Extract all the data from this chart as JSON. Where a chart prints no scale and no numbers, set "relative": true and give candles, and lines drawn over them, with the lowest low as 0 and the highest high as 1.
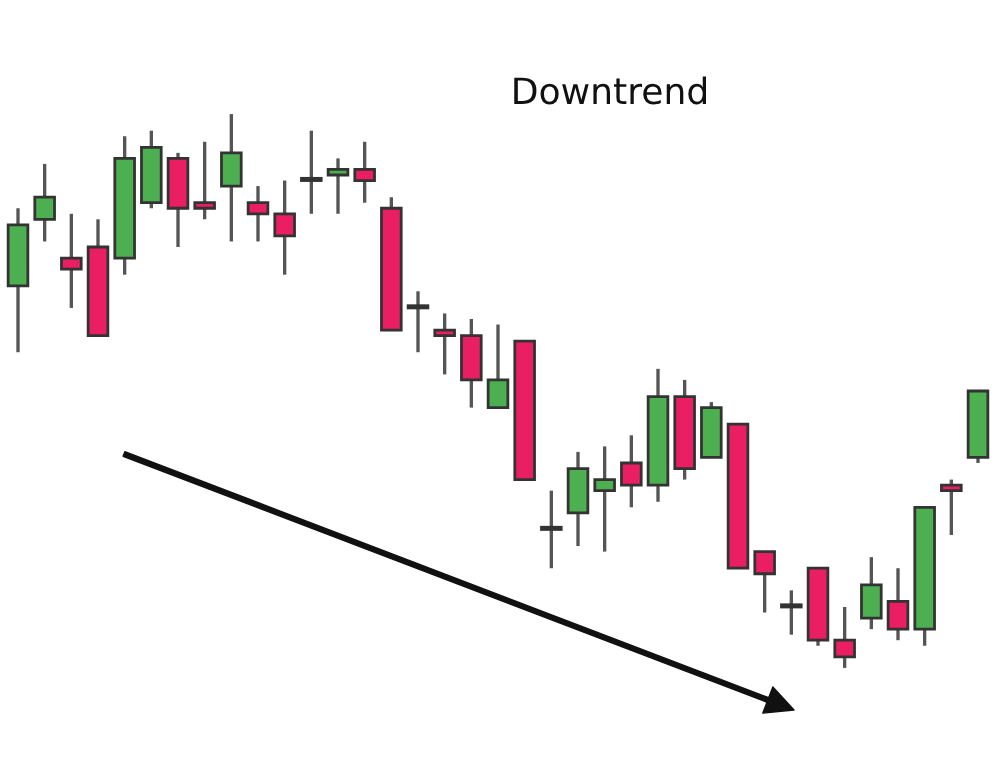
{
  "chart_data": {
    "type": "candlestick",
    "title": "Downtrend",
    "relative": true,
    "categories": [
      null,
      null,
      null,
      null,
      null,
      null,
      null,
      null,
      null,
      null,
      null,
      null,
      null,
      null,
      null,
      null,
      null,
      null,
      null,
      null,
      null,
      null,
      null,
      null,
      null,
      null,
      null,
      null,
      null,
      null,
      null,
      null,
      null,
      null,
      null,
      null,
      null
    ],
    "ohlc": [
      [
        0.69,
        0.83,
        0.57,
        0.8
      ],
      [
        0.81,
        0.91,
        0.77,
        0.85
      ],
      [
        0.74,
        0.82,
        0.65,
        0.72
      ],
      [
        0.76,
        0.81,
        0.6,
        0.6
      ],
      [
        0.74,
        0.96,
        0.71,
        0.92
      ],
      [
        0.84,
        0.97,
        0.83,
        0.94
      ],
      [
        0.92,
        0.93,
        0.76,
        0.83
      ],
      [
        0.84,
        0.95,
        0.81,
        0.83
      ],
      [
        0.87,
        1.0,
        0.77,
        0.93
      ],
      [
        0.84,
        0.87,
        0.77,
        0.82
      ],
      [
        0.82,
        0.88,
        0.71,
        0.78
      ],
      [
        0.88,
        0.97,
        0.82,
        0.88
      ],
      [
        0.89,
        0.92,
        0.82,
        0.9
      ],
      [
        0.9,
        0.95,
        0.84,
        0.88
      ],
      [
        0.83,
        0.85,
        0.61,
        0.61
      ],
      [
        0.65,
        0.68,
        0.57,
        0.65
      ],
      [
        0.61,
        0.64,
        0.53,
        0.6
      ],
      [
        0.6,
        0.63,
        0.47,
        0.52
      ],
      [
        0.47,
        0.62,
        0.47,
        0.52
      ],
      [
        0.59,
        0.59,
        0.34,
        0.34
      ],
      [
        0.25,
        0.32,
        0.18,
        0.25
      ],
      [
        0.28,
        0.39,
        0.22,
        0.36
      ],
      [
        0.32,
        0.4,
        0.21,
        0.34
      ],
      [
        0.37,
        0.42,
        0.29,
        0.33
      ],
      [
        0.33,
        0.54,
        0.3,
        0.49
      ],
      [
        0.49,
        0.52,
        0.34,
        0.36
      ],
      [
        0.38,
        0.48,
        0.38,
        0.47
      ],
      [
        0.44,
        0.44,
        0.18,
        0.18
      ],
      [
        0.21,
        0.21,
        0.1,
        0.17
      ],
      [
        0.11,
        0.14,
        0.06,
        0.11
      ],
      [
        0.18,
        0.18,
        0.04,
        0.05
      ],
      [
        0.05,
        0.11,
        0.0,
        0.02
      ],
      [
        0.09,
        0.2,
        0.07,
        0.15
      ],
      [
        0.12,
        0.18,
        0.05,
        0.07
      ],
      [
        0.07,
        0.29,
        0.04,
        0.29
      ],
      [
        0.33,
        0.34,
        0.24,
        0.32
      ],
      [
        0.38,
        0.5,
        0.37,
        0.5
      ]
    ],
    "colors": [
      "#4caf50",
      "#4caf50",
      "#e91e63",
      "#e91e63",
      "#4caf50",
      "#4caf50",
      "#e91e63",
      "#e91e63",
      "#4caf50",
      "#e91e63",
      "#e91e63",
      "#4caf50",
      "#4caf50",
      "#e91e63",
      "#e91e63",
      "#4caf50",
      "#e91e63",
      "#e91e63",
      "#4caf50",
      "#e91e63",
      "#4caf50",
      "#4caf50",
      "#4caf50",
      "#e91e63",
      "#4caf50",
      "#e91e63",
      "#4caf50",
      "#e91e63",
      "#e91e63",
      "#4caf50",
      "#e91e63",
      "#e91e63",
      "#4caf50",
      "#e91e63",
      "#4caf50",
      "#e91e63",
      "#4caf50"
    ],
    "grid": false,
    "legend": false
  }
}
